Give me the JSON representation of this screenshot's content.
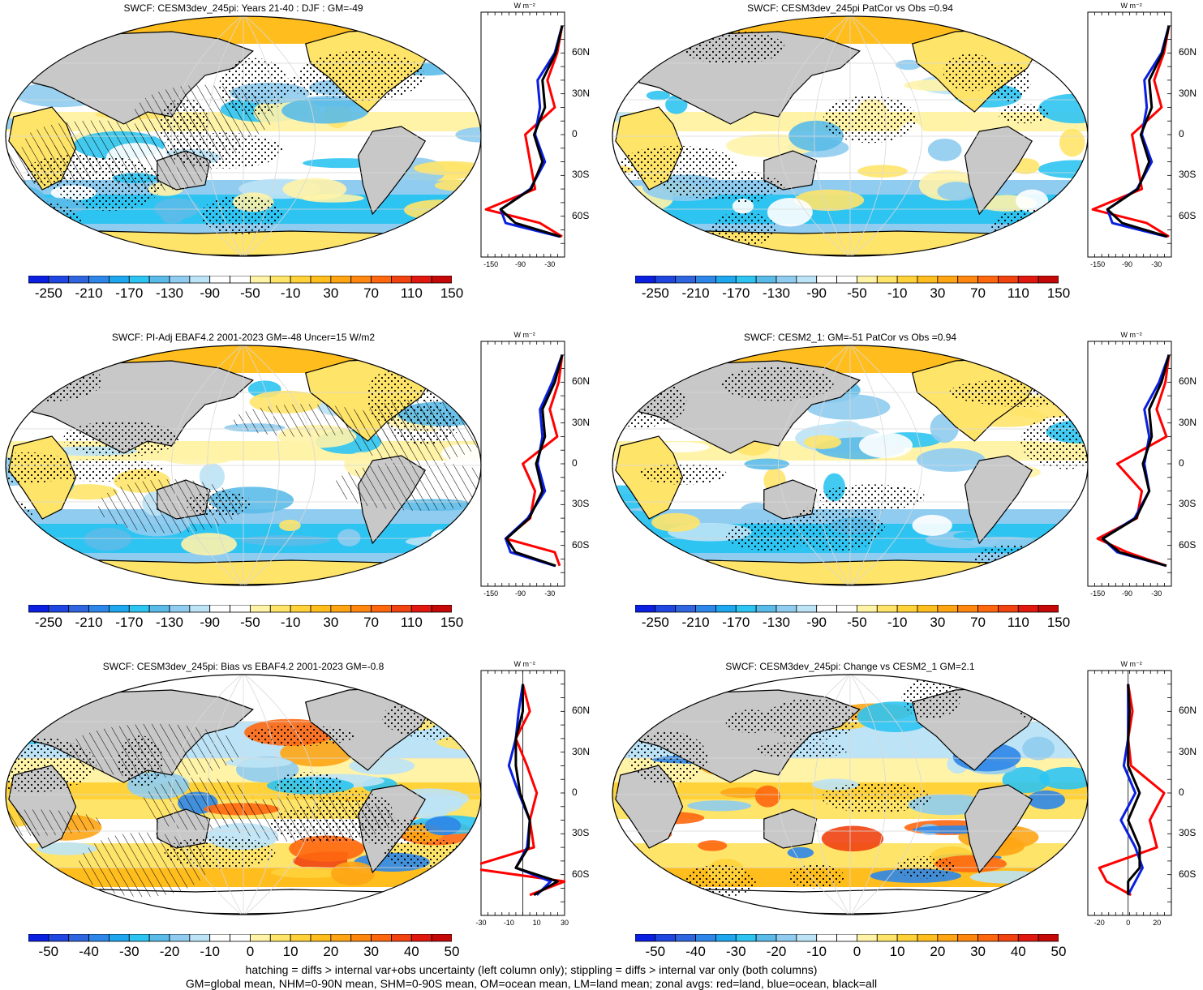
{
  "panels": [
    {
      "id": "p1",
      "title": "SWCF: CESM3dev_245pi: Years 21-40 : DJF : GM=-49",
      "cbar": [
        "-250",
        "-210",
        "-170",
        "-130",
        "-90",
        "-50",
        "-10",
        "30",
        "70",
        "110",
        "150"
      ],
      "zx": [
        "-150",
        "-90",
        "-30"
      ],
      "zxrange": [
        -170,
        0
      ],
      "hatched": true,
      "style": "mean",
      "seed": 1
    },
    {
      "id": "p2",
      "title": "SWCF: CESM3dev_245pi PatCor vs Obs =0.94",
      "cbar": [
        "-250",
        "-210",
        "-170",
        "-130",
        "-90",
        "-50",
        "-10",
        "30",
        "70",
        "110",
        "150"
      ],
      "zx": [
        "-150",
        "-90",
        "-30"
      ],
      "zxrange": [
        -170,
        0
      ],
      "hatched": false,
      "style": "mean",
      "seed": 2
    },
    {
      "id": "p3",
      "title": "SWCF: PI-Adj EBAF4.2 2001-2023 GM=-48 Uncer=15 W/m2",
      "cbar": [
        "-250",
        "-210",
        "-170",
        "-130",
        "-90",
        "-50",
        "-10",
        "30",
        "70",
        "110",
        "150"
      ],
      "zx": [
        "-150",
        "-90",
        "-30"
      ],
      "zxrange": [
        -170,
        0
      ],
      "hatched": true,
      "style": "mean",
      "seed": 3
    },
    {
      "id": "p4",
      "title": "SWCF: CESM2_1: GM=-51 PatCor vs Obs =0.94",
      "cbar": [
        "-250",
        "-210",
        "-170",
        "-130",
        "-90",
        "-50",
        "-10",
        "30",
        "70",
        "110",
        "150"
      ],
      "zx": [
        "-150",
        "-90",
        "-30"
      ],
      "zxrange": [
        -170,
        0
      ],
      "hatched": false,
      "style": "mean",
      "seed": 4
    },
    {
      "id": "p5",
      "title": "SWCF: CESM3dev_245pi: Bias vs EBAF4.2 2001-2023 GM=-0.8",
      "cbar": [
        "-50",
        "-40",
        "-30",
        "-20",
        "-10",
        "0",
        "10",
        "20",
        "30",
        "40",
        "50"
      ],
      "zx": [
        "-30",
        "-10",
        "10",
        "30"
      ],
      "zxrange": [
        -30,
        30
      ],
      "hatched": true,
      "style": "diff",
      "seed": 5
    },
    {
      "id": "p6",
      "title": "SWCF: CESM3dev_245pi: Change vs CESM2_1 GM=2.1",
      "cbar": [
        "-50",
        "-40",
        "-30",
        "-20",
        "-10",
        "0",
        "10",
        "20",
        "30",
        "40",
        "50"
      ],
      "zx": [
        "-20",
        "0",
        "20"
      ],
      "zxrange": [
        -28,
        30
      ],
      "hatched": false,
      "style": "diff",
      "seed": 6
    }
  ],
  "zonal_unit": "W m⁻²",
  "lat_labels": [
    "60N",
    "30N",
    "0",
    "30S",
    "60S"
  ],
  "footer": {
    "line1": "hatching = diffs > internal var+obs uncertainty (left column only); stippling = diffs > internal var only (both columns)",
    "line2": "GM=global mean, NHM=0-90N mean, SHM=0-90S mean, OM=ocean mean, LM=land mean; zonal avgs: red=land, blue=ocean, black=all"
  },
  "colors": {
    "palette": [
      "#0a1fe0",
      "#1f46e0",
      "#2f66e0",
      "#2e86e8",
      "#1ea7ee",
      "#2ec4f2",
      "#5bbbe8",
      "#8fccf0",
      "#bde3f6",
      "#ffffff",
      "#ffffff",
      "#fff3a8",
      "#ffe46a",
      "#ffd23a",
      "#ffbe1e",
      "#ffa514",
      "#ff870f",
      "#ff670f",
      "#f0430f",
      "#e01810",
      "#c40808"
    ],
    "land": "#c8c8c8",
    "red": "#ff0000",
    "blue": "#0a1fe0",
    "black": "#000000"
  },
  "chart_data": [
    {
      "type": "heatmap",
      "title": "SWCF: CESM3dev_245pi: Years 21-40 : DJF : GM=-49",
      "colorbar": [
        -250,
        -210,
        -170,
        -130,
        -90,
        -50,
        -10,
        30,
        70,
        110,
        150
      ],
      "zonal": {
        "lat": [
          80,
          60,
          40,
          20,
          0,
          -20,
          -40,
          -55,
          -65,
          -75
        ],
        "land": [
          -5,
          -15,
          -35,
          -20,
          -80,
          -70,
          -60,
          -160,
          -50,
          -5
        ],
        "ocean": [
          -5,
          -20,
          -55,
          -50,
          -60,
          -40,
          -70,
          -130,
          -120,
          -10
        ],
        "all": [
          -5,
          -18,
          -45,
          -40,
          -62,
          -45,
          -68,
          -130,
          -100,
          -8
        ]
      }
    },
    {
      "type": "heatmap",
      "title": "SWCF: CESM3dev_245pi PatCor vs Obs =0.94",
      "colorbar": [
        -250,
        -210,
        -170,
        -130,
        -90,
        -50,
        -10,
        30,
        70,
        110,
        150
      ],
      "zonal": {
        "lat": [
          80,
          60,
          40,
          20,
          0,
          -20,
          -40,
          -55,
          -65,
          -75
        ],
        "land": [
          -5,
          -15,
          -35,
          -20,
          -80,
          -70,
          -60,
          -160,
          -50,
          -5
        ],
        "ocean": [
          -5,
          -20,
          -55,
          -50,
          -60,
          -40,
          -70,
          -130,
          -120,
          -10
        ],
        "all": [
          -5,
          -18,
          -45,
          -40,
          -62,
          -45,
          -68,
          -130,
          -100,
          -8
        ]
      }
    },
    {
      "type": "heatmap",
      "title": "SWCF: PI-Adj EBAF4.2 2001-2023 GM=-48 Uncer=15 W/m2",
      "colorbar": [
        -250,
        -210,
        -170,
        -130,
        -90,
        -50,
        -10,
        30,
        70,
        110,
        150
      ],
      "zonal": {
        "lat": [
          80,
          60,
          40,
          20,
          0,
          -20,
          -40,
          -55,
          -65,
          -75
        ],
        "land": [
          -5,
          -12,
          -30,
          -15,
          -85,
          -60,
          -70,
          -120,
          -20,
          -10
        ],
        "ocean": [
          -5,
          -25,
          -50,
          -45,
          -55,
          -40,
          -75,
          -120,
          -110,
          -20
        ],
        "all": [
          -5,
          -20,
          -45,
          -40,
          -58,
          -45,
          -72,
          -118,
          -100,
          -18
        ]
      }
    },
    {
      "type": "heatmap",
      "title": "SWCF: CESM2_1: GM=-51 PatCor vs Obs =0.94",
      "colorbar": [
        -250,
        -210,
        -170,
        -130,
        -90,
        -50,
        -10,
        30,
        70,
        110,
        150
      ],
      "zonal": {
        "lat": [
          80,
          60,
          40,
          20,
          0,
          -20,
          -40,
          -55,
          -65,
          -75
        ],
        "land": [
          -5,
          -12,
          -30,
          -10,
          -110,
          -60,
          -70,
          -150,
          -90,
          -10
        ],
        "ocean": [
          -5,
          -25,
          -55,
          -45,
          -55,
          -45,
          -75,
          -140,
          -110,
          -10
        ],
        "all": [
          -5,
          -20,
          -45,
          -40,
          -58,
          -45,
          -72,
          -140,
          -105,
          -10
        ]
      }
    },
    {
      "type": "heatmap",
      "title": "SWCF: CESM3dev_245pi: Bias vs EBAF4.2 2001-2023 GM=-0.8",
      "colorbar": [
        -50,
        -40,
        -30,
        -20,
        -10,
        0,
        10,
        20,
        30,
        40,
        50
      ],
      "zonal": {
        "lat": [
          80,
          60,
          40,
          20,
          0,
          -20,
          -40,
          -55,
          -65,
          -75
        ],
        "land": [
          0,
          5,
          -5,
          3,
          10,
          5,
          8,
          -40,
          30,
          5
        ],
        "ocean": [
          0,
          -3,
          -5,
          -10,
          -3,
          5,
          3,
          -5,
          20,
          10
        ],
        "all": [
          0,
          0,
          -5,
          -5,
          -2,
          5,
          4,
          -5,
          25,
          8
        ]
      }
    },
    {
      "type": "heatmap",
      "title": "SWCF: CESM3dev_245pi: Change vs CESM2_1 GM=2.1",
      "colorbar": [
        -50,
        -40,
        -30,
        -20,
        -10,
        0,
        10,
        20,
        30,
        40,
        50
      ],
      "zonal": {
        "lat": [
          80,
          60,
          40,
          20,
          0,
          -20,
          -40,
          -55,
          -65,
          -75
        ],
        "land": [
          0,
          3,
          0,
          2,
          25,
          15,
          20,
          -20,
          -15,
          2
        ],
        "ocean": [
          0,
          0,
          0,
          -3,
          5,
          -5,
          5,
          10,
          5,
          0
        ],
        "all": [
          0,
          1,
          0,
          0,
          8,
          0,
          8,
          8,
          0,
          0
        ]
      }
    }
  ]
}
